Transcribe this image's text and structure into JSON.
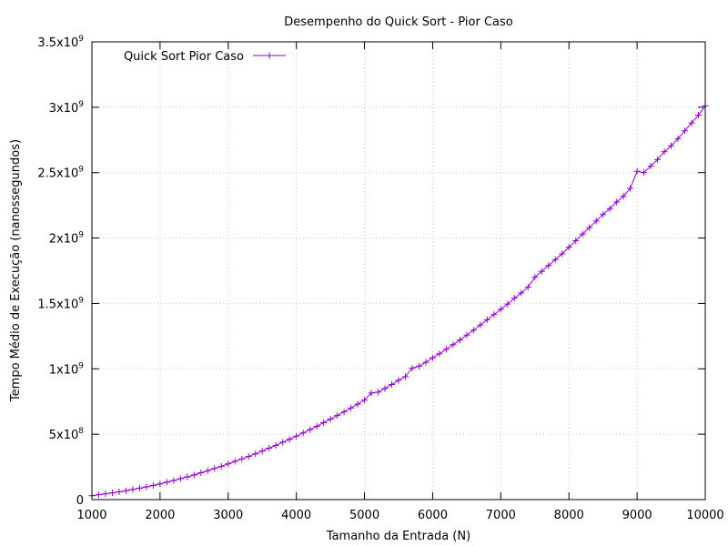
{
  "chart_data": {
    "type": "line",
    "title": "Desempenho do Quick Sort - Pior Caso",
    "xlabel": "Tamanho da Entrada (N)",
    "ylabel": "Tempo Médio de Execução (nanossegundos)",
    "xlim": [
      1000,
      10000
    ],
    "ylim": [
      0,
      3500000000
    ],
    "xticks": [
      1000,
      2000,
      3000,
      4000,
      5000,
      6000,
      7000,
      8000,
      9000,
      10000
    ],
    "xtick_labels": [
      "1000",
      "2000",
      "3000",
      "4000",
      "5000",
      "6000",
      "7000",
      "8000",
      "9000",
      "10000"
    ],
    "yticks": [
      0,
      500000000,
      1000000000,
      1500000000,
      2000000000,
      2500000000,
      3000000000,
      3500000000
    ],
    "ytick_labels": [
      {
        "mantissa": "0",
        "exp": ""
      },
      {
        "mantissa": "5x10",
        "exp": "8"
      },
      {
        "mantissa": "1x10",
        "exp": "9"
      },
      {
        "mantissa": "1.5x10",
        "exp": "9"
      },
      {
        "mantissa": "2x10",
        "exp": "9"
      },
      {
        "mantissa": "2.5x10",
        "exp": "9"
      },
      {
        "mantissa": "3x10",
        "exp": "9"
      },
      {
        "mantissa": "3.5x10",
        "exp": "9"
      }
    ],
    "grid": true,
    "legend_position": "top-left",
    "series": [
      {
        "name": "Quick Sort Pior Caso",
        "color": "#9400d3",
        "marker": "plus",
        "x": [
          1000,
          1100,
          1200,
          1300,
          1400,
          1500,
          1600,
          1700,
          1800,
          1900,
          2000,
          2100,
          2200,
          2300,
          2400,
          2500,
          2600,
          2700,
          2800,
          2900,
          3000,
          3100,
          3200,
          3300,
          3400,
          3500,
          3600,
          3700,
          3800,
          3900,
          4000,
          4100,
          4200,
          4300,
          4400,
          4500,
          4600,
          4700,
          4800,
          4900,
          5000,
          5100,
          5200,
          5300,
          5400,
          5500,
          5600,
          5700,
          5800,
          5900,
          6000,
          6100,
          6200,
          6300,
          6400,
          6500,
          6600,
          6700,
          6800,
          6900,
          7000,
          7100,
          7200,
          7300,
          7400,
          7500,
          7600,
          7700,
          7800,
          7900,
          8000,
          8100,
          8200,
          8300,
          8400,
          8500,
          8600,
          8700,
          8800,
          8900,
          9000,
          9100,
          9200,
          9300,
          9400,
          9500,
          9600,
          9700,
          9800,
          9900,
          10000
        ],
        "y": [
          30000000,
          37000000,
          44000000,
          51000000,
          59000000,
          68000000,
          77000000,
          87000000,
          97000000,
          108000000,
          120000000,
          133000000,
          146000000,
          160000000,
          174000000,
          189000000,
          205000000,
          221000000,
          238000000,
          255000000,
          273000000,
          292000000,
          311000000,
          330000000,
          350000000,
          371000000,
          393000000,
          415000000,
          438000000,
          461000000,
          485000000,
          510000000,
          535000000,
          561000000,
          588000000,
          615000000,
          643000000,
          671000000,
          700000000,
          730000000,
          760000000,
          815000000,
          822000000,
          850000000,
          880000000,
          912000000,
          940000000,
          1005000000,
          1020000000,
          1050000000,
          1085000000,
          1115000000,
          1150000000,
          1185000000,
          1220000000,
          1258000000,
          1295000000,
          1335000000,
          1375000000,
          1415000000,
          1455000000,
          1495000000,
          1540000000,
          1580000000,
          1625000000,
          1700000000,
          1745000000,
          1790000000,
          1835000000,
          1880000000,
          1930000000,
          1980000000,
          2030000000,
          2080000000,
          2130000000,
          2180000000,
          2225000000,
          2275000000,
          2320000000,
          2380000000,
          2510000000,
          2500000000,
          2550000000,
          2600000000,
          2660000000,
          2705000000,
          2760000000,
          2820000000,
          2880000000,
          2940000000,
          3010000000
        ]
      }
    ]
  }
}
